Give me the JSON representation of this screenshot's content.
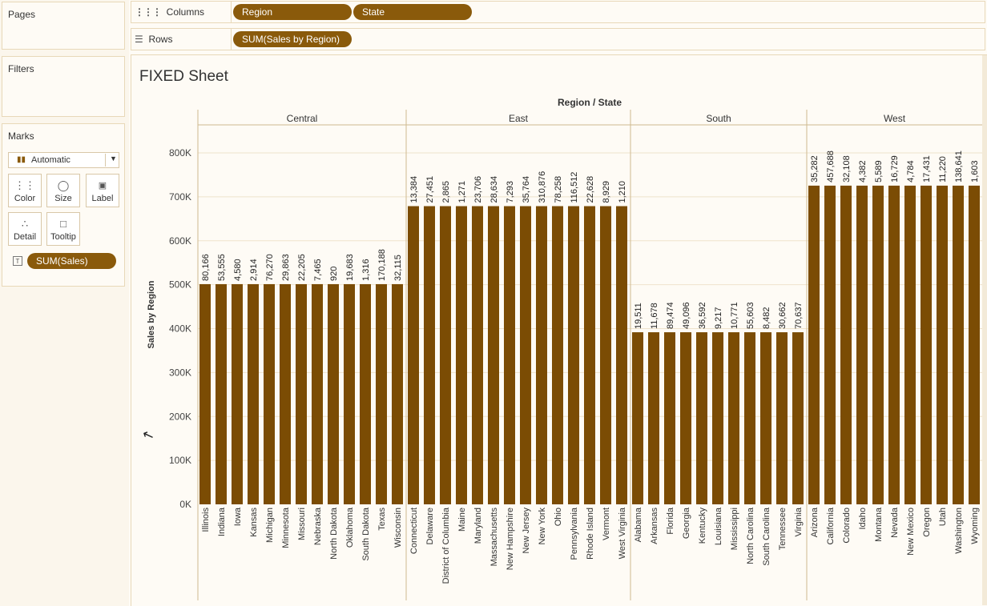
{
  "left_panel": {
    "pages_title": "Pages",
    "filters_title": "Filters",
    "marks_title": "Marks",
    "mark_type": "Automatic",
    "mark_buttons": [
      "Color",
      "Size",
      "Label",
      "Detail",
      "Tooltip"
    ],
    "mark_field_pill": "SUM(Sales)"
  },
  "shelves": {
    "columns_label": "Columns",
    "columns_pills": [
      "Region",
      "State"
    ],
    "rows_label": "Rows",
    "rows_pills": [
      "SUM(Sales by Region)"
    ]
  },
  "sheet": {
    "title": "FIXED Sheet"
  },
  "colors": {
    "bar": "#7b4c04",
    "pill": "#8a5a0b",
    "grid": "#efe3cc",
    "divider": "#cfb98f"
  },
  "chart_data": {
    "type": "bar",
    "header_title": "Region / State",
    "ylabel": "Sales by Region",
    "ylim": [
      0,
      800000
    ],
    "yticks": [
      0,
      100000,
      200000,
      300000,
      400000,
      500000,
      600000,
      700000,
      800000
    ],
    "ytick_labels": [
      "0K",
      "100K",
      "200K",
      "300K",
      "400K",
      "500K",
      "600K",
      "700K",
      "800K"
    ],
    "regions": [
      {
        "name": "Central",
        "value": 501240,
        "states": [
          "Illinois",
          "Indiana",
          "Iowa",
          "Kansas",
          "Michigan",
          "Minnesota",
          "Missouri",
          "Nebraska",
          "North Dakota",
          "Oklahoma",
          "South Dakota",
          "Texas",
          "Wisconsin"
        ],
        "labels": [
          "80,166",
          "53,555",
          "4,580",
          "2,914",
          "76,270",
          "29,863",
          "22,205",
          "7,465",
          "920",
          "19,683",
          "1,316",
          "170,188",
          "32,115"
        ]
      },
      {
        "name": "East",
        "value": 678781,
        "states": [
          "Connecticut",
          "Delaware",
          "District of Columbia",
          "Maine",
          "Maryland",
          "Massachusetts",
          "New Hampshire",
          "New Jersey",
          "New York",
          "Ohio",
          "Pennsylvania",
          "Rhode Island",
          "Vermont",
          "West Virginia"
        ],
        "labels": [
          "13,384",
          "27,451",
          "2,865",
          "1,271",
          "23,706",
          "28,634",
          "7,293",
          "35,764",
          "310,876",
          "78,258",
          "116,512",
          "22,628",
          "8,929",
          "1,210"
        ]
      },
      {
        "name": "South",
        "value": 391722,
        "states": [
          "Alabama",
          "Arkansas",
          "Florida",
          "Georgia",
          "Kentucky",
          "Louisiana",
          "Mississippi",
          "North Carolina",
          "South Carolina",
          "Tennessee",
          "Virginia"
        ],
        "labels": [
          "19,511",
          "11,678",
          "89,474",
          "49,096",
          "36,592",
          "9,217",
          "10,771",
          "55,603",
          "8,482",
          "30,662",
          "70,637"
        ]
      },
      {
        "name": "West",
        "value": 725458,
        "states": [
          "Arizona",
          "California",
          "Colorado",
          "Idaho",
          "Montana",
          "Nevada",
          "New Mexico",
          "Oregon",
          "Utah",
          "Washington",
          "Wyoming"
        ],
        "labels": [
          "35,282",
          "457,688",
          "32,108",
          "4,382",
          "5,589",
          "16,729",
          "4,784",
          "17,431",
          "11,220",
          "138,641",
          "1,603"
        ]
      }
    ]
  }
}
